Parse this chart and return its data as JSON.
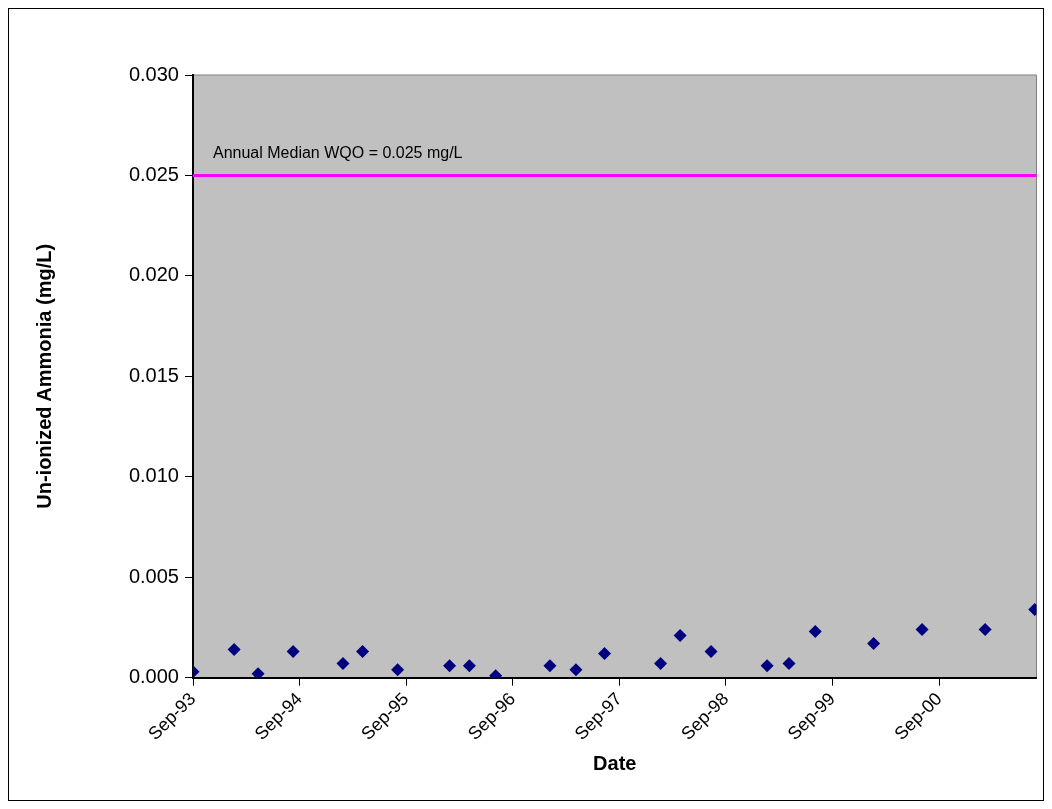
{
  "chart_data": {
    "type": "scatter",
    "xlabel": "Date",
    "ylabel": "Un-ionized Ammonia (mg/L)",
    "x": [
      "1993-09-01",
      "1994-01-20",
      "1994-04-12",
      "1994-08-10",
      "1995-01-28",
      "1995-04-05",
      "1995-08-03",
      "1996-01-28",
      "1996-04-05",
      "1996-07-04",
      "1997-01-06",
      "1997-04-05",
      "1997-07-12",
      "1998-01-20",
      "1998-03-28",
      "1998-07-12",
      "1999-01-20",
      "1999-04-05",
      "1999-07-04",
      "2000-01-20",
      "2000-07-04",
      "2001-02-05",
      "2001-07-25"
    ],
    "series": [
      {
        "color": "#000080",
        "values": [
          0.0003,
          0.0014,
          0.0002,
          0.0013,
          0.0007,
          0.0013,
          0.0004,
          0.0006,
          0.0006,
          0.0001,
          0.0006,
          0.0004,
          0.0012,
          0.0007,
          0.0021,
          0.0013,
          0.0006,
          0.0007,
          0.0023,
          0.0017,
          0.0024,
          0.0024,
          0.0034
        ]
      }
    ],
    "xlim": [
      "1993-09-01",
      "2001-07-31"
    ],
    "xticks": [
      {
        "value": "1993-09-01",
        "label": "Sep-93"
      },
      {
        "value": "1994-09-01",
        "label": "Sep-94"
      },
      {
        "value": "1995-09-01",
        "label": "Sep-95"
      },
      {
        "value": "1996-09-01",
        "label": "Sep-96"
      },
      {
        "value": "1997-09-01",
        "label": "Sep-97"
      },
      {
        "value": "1998-09-01",
        "label": "Sep-98"
      },
      {
        "value": "1999-09-01",
        "label": "Sep-99"
      },
      {
        "value": "2000-09-01",
        "label": "Sep-00"
      }
    ],
    "ylim": [
      0,
      0.03
    ],
    "yticks": [
      {
        "value": 0,
        "label": "0.000"
      },
      {
        "value": 0.005,
        "label": "0.005"
      },
      {
        "value": 0.01,
        "label": "0.010"
      },
      {
        "value": 0.015,
        "label": "0.015"
      },
      {
        "value": 0.02,
        "label": "0.020"
      },
      {
        "value": 0.025,
        "label": "0.025"
      },
      {
        "value": 0.03,
        "label": "0.030"
      }
    ],
    "ref_lines": [
      {
        "axis": "y",
        "value": 0.025,
        "label": "Annual Median WQO = 0.025 mg/L",
        "color": "#ff00ff"
      }
    ],
    "marker": "diamond",
    "grid": false,
    "legend": false
  }
}
